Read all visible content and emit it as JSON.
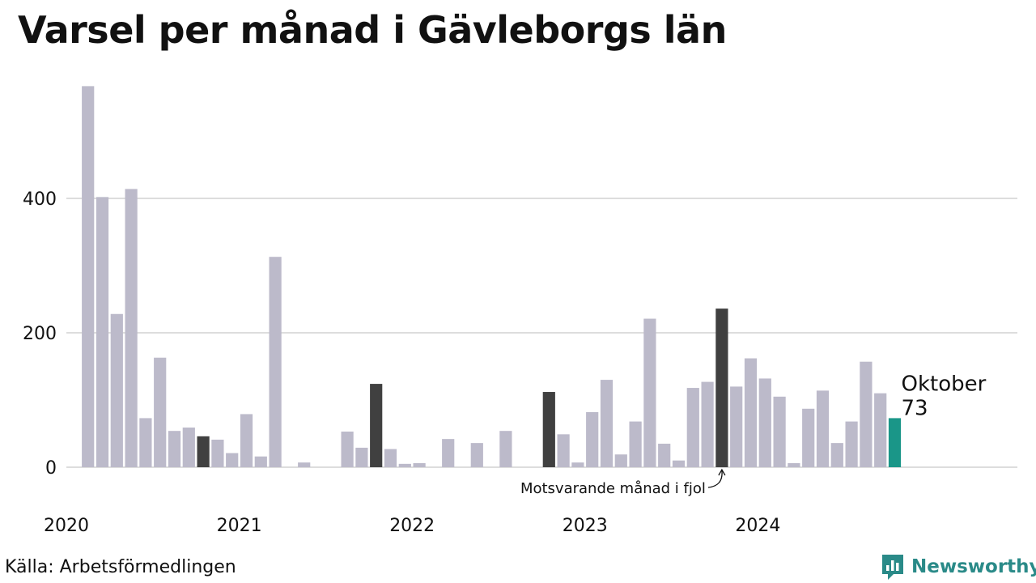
{
  "title": "Varsel per månad i Gävleborgs län",
  "source": "Källa: Arbetsförmedlingen",
  "brand": {
    "name": "Newsworthy",
    "color": "#2a8a88"
  },
  "colors": {
    "bar": "#bcbaca",
    "comparison": "#404040",
    "current": "#1a9688",
    "grid": "#dddddd",
    "text": "#111111"
  },
  "annotations": {
    "comparison_label": "Motsvarande månad i fjol",
    "current_month": "Oktober",
    "current_value": "73"
  },
  "chart_data": {
    "type": "bar",
    "title": "Varsel per månad i Gävleborgs län",
    "xlabel": "",
    "ylabel": "",
    "ylim": [
      0,
      570
    ],
    "yticks": [
      0,
      200,
      400
    ],
    "xtick_labels": [
      "2020",
      "2021",
      "2022",
      "2023",
      "2024"
    ],
    "grid": true,
    "start": "2020-01",
    "x": [
      "2020-01",
      "2020-02",
      "2020-03",
      "2020-04",
      "2020-05",
      "2020-06",
      "2020-07",
      "2020-08",
      "2020-09",
      "2020-10",
      "2020-11",
      "2020-12",
      "2021-01",
      "2021-02",
      "2021-03",
      "2021-04",
      "2021-05",
      "2021-06",
      "2021-07",
      "2021-08",
      "2021-09",
      "2021-10",
      "2021-11",
      "2021-12",
      "2022-01",
      "2022-02",
      "2022-03",
      "2022-04",
      "2022-05",
      "2022-06",
      "2022-07",
      "2022-08",
      "2022-09",
      "2022-10",
      "2022-11",
      "2022-12",
      "2023-01",
      "2023-02",
      "2023-03",
      "2023-04",
      "2023-05",
      "2023-06",
      "2023-07",
      "2023-08",
      "2023-09",
      "2023-10",
      "2023-11",
      "2023-12",
      "2024-01",
      "2024-02",
      "2024-03",
      "2024-04",
      "2024-05",
      "2024-06",
      "2024-07",
      "2024-08",
      "2024-09",
      "2024-10"
    ],
    "values": [
      0,
      567,
      402,
      228,
      414,
      73,
      163,
      54,
      59,
      46,
      41,
      21,
      79,
      16,
      313,
      0,
      7,
      0,
      0,
      53,
      29,
      124,
      27,
      5,
      6,
      0,
      42,
      0,
      36,
      0,
      54,
      0,
      0,
      112,
      49,
      7,
      82,
      130,
      19,
      68,
      221,
      35,
      10,
      118,
      127,
      236,
      120,
      162,
      132,
      105,
      6,
      87,
      114,
      36,
      68,
      157,
      110,
      73
    ],
    "highlight_comparison": [
      "2020-10",
      "2021-10",
      "2022-10",
      "2023-10"
    ],
    "highlight_current": "2024-10"
  }
}
